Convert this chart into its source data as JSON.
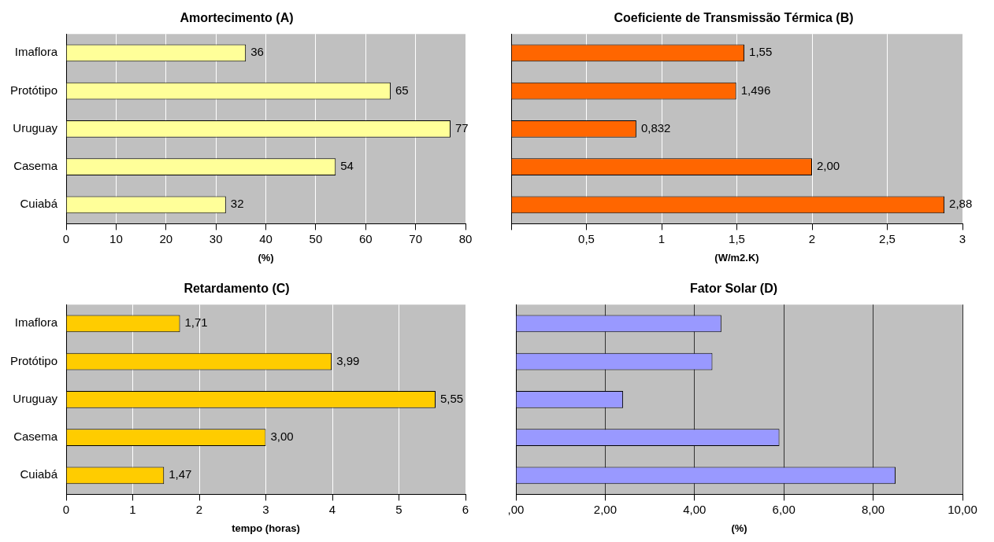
{
  "chart_data": [
    {
      "type": "bar",
      "orientation": "horizontal",
      "title": "Amortecimento (A)",
      "xlabel": "(%)",
      "categories": [
        "Imaflora",
        "Protótipo",
        "Uruguay",
        "Casema",
        "Cuiabá"
      ],
      "values": [
        36,
        65,
        77,
        54,
        32
      ],
      "value_labels": [
        "36",
        "65",
        "77",
        "54",
        "32"
      ],
      "color": "#ffff99",
      "xlim": [
        0,
        80
      ],
      "xticks": [
        0,
        10,
        20,
        30,
        40,
        50,
        60,
        70,
        80
      ],
      "grid": "x"
    },
    {
      "type": "bar",
      "orientation": "horizontal",
      "title": "Coeficiente de Transmissão Térmica (B)",
      "xlabel": "(W/m2.K)",
      "categories": [
        null,
        null,
        null,
        null,
        null
      ],
      "values": [
        1.55,
        1.496,
        0.832,
        2.0,
        2.88
      ],
      "value_labels": [
        "1,55",
        "1,496",
        "0,832",
        "2,00",
        "2,88"
      ],
      "color": "#ff6600",
      "xlim": [
        0,
        3
      ],
      "xticks": [
        {
          "value": 0,
          "label": null
        },
        {
          "value": 0.5,
          "label": "0,5"
        },
        1,
        {
          "value": 1.5,
          "label": "1,5"
        },
        2,
        {
          "value": 2.5,
          "label": "2,5"
        },
        3
      ],
      "tick_labels": "x",
      "grid": "x"
    },
    {
      "type": "bar",
      "orientation": "horizontal",
      "title": "Retardamento (C)",
      "xlabel": "tempo (horas)",
      "categories": [
        "Imaflora",
        "Protótipo",
        "Uruguay",
        "Casema",
        "Cuiabá"
      ],
      "values": [
        1.71,
        3.99,
        5.55,
        3.0,
        1.47
      ],
      "value_labels": [
        "1,71",
        "3,99",
        "5,55",
        "3,00",
        "1,47"
      ],
      "color": "#ffcc00",
      "xlim": [
        0,
        6
      ],
      "xticks": [
        0,
        1,
        2,
        3,
        4,
        5,
        6
      ],
      "grid": "x"
    },
    {
      "type": "bar",
      "orientation": "horizontal",
      "title": "Fator Solar (D)",
      "xlabel": "(%)",
      "categories": [
        null,
        null,
        null,
        null,
        null
      ],
      "values": [
        4.6,
        4.4,
        2.4,
        5.9,
        8.5
      ],
      "color": "#9999ff",
      "xlim": [
        0,
        10
      ],
      "xticks": [
        {
          "value": 0,
          "label": ",00"
        },
        {
          "value": 2,
          "label": "2,00"
        },
        {
          "value": 4,
          "label": "4,00"
        },
        {
          "value": 6,
          "label": "6,00"
        },
        {
          "value": 8,
          "label": "8,00"
        },
        {
          "value": 10,
          "label": "10,00"
        }
      ],
      "grid": "x"
    }
  ]
}
